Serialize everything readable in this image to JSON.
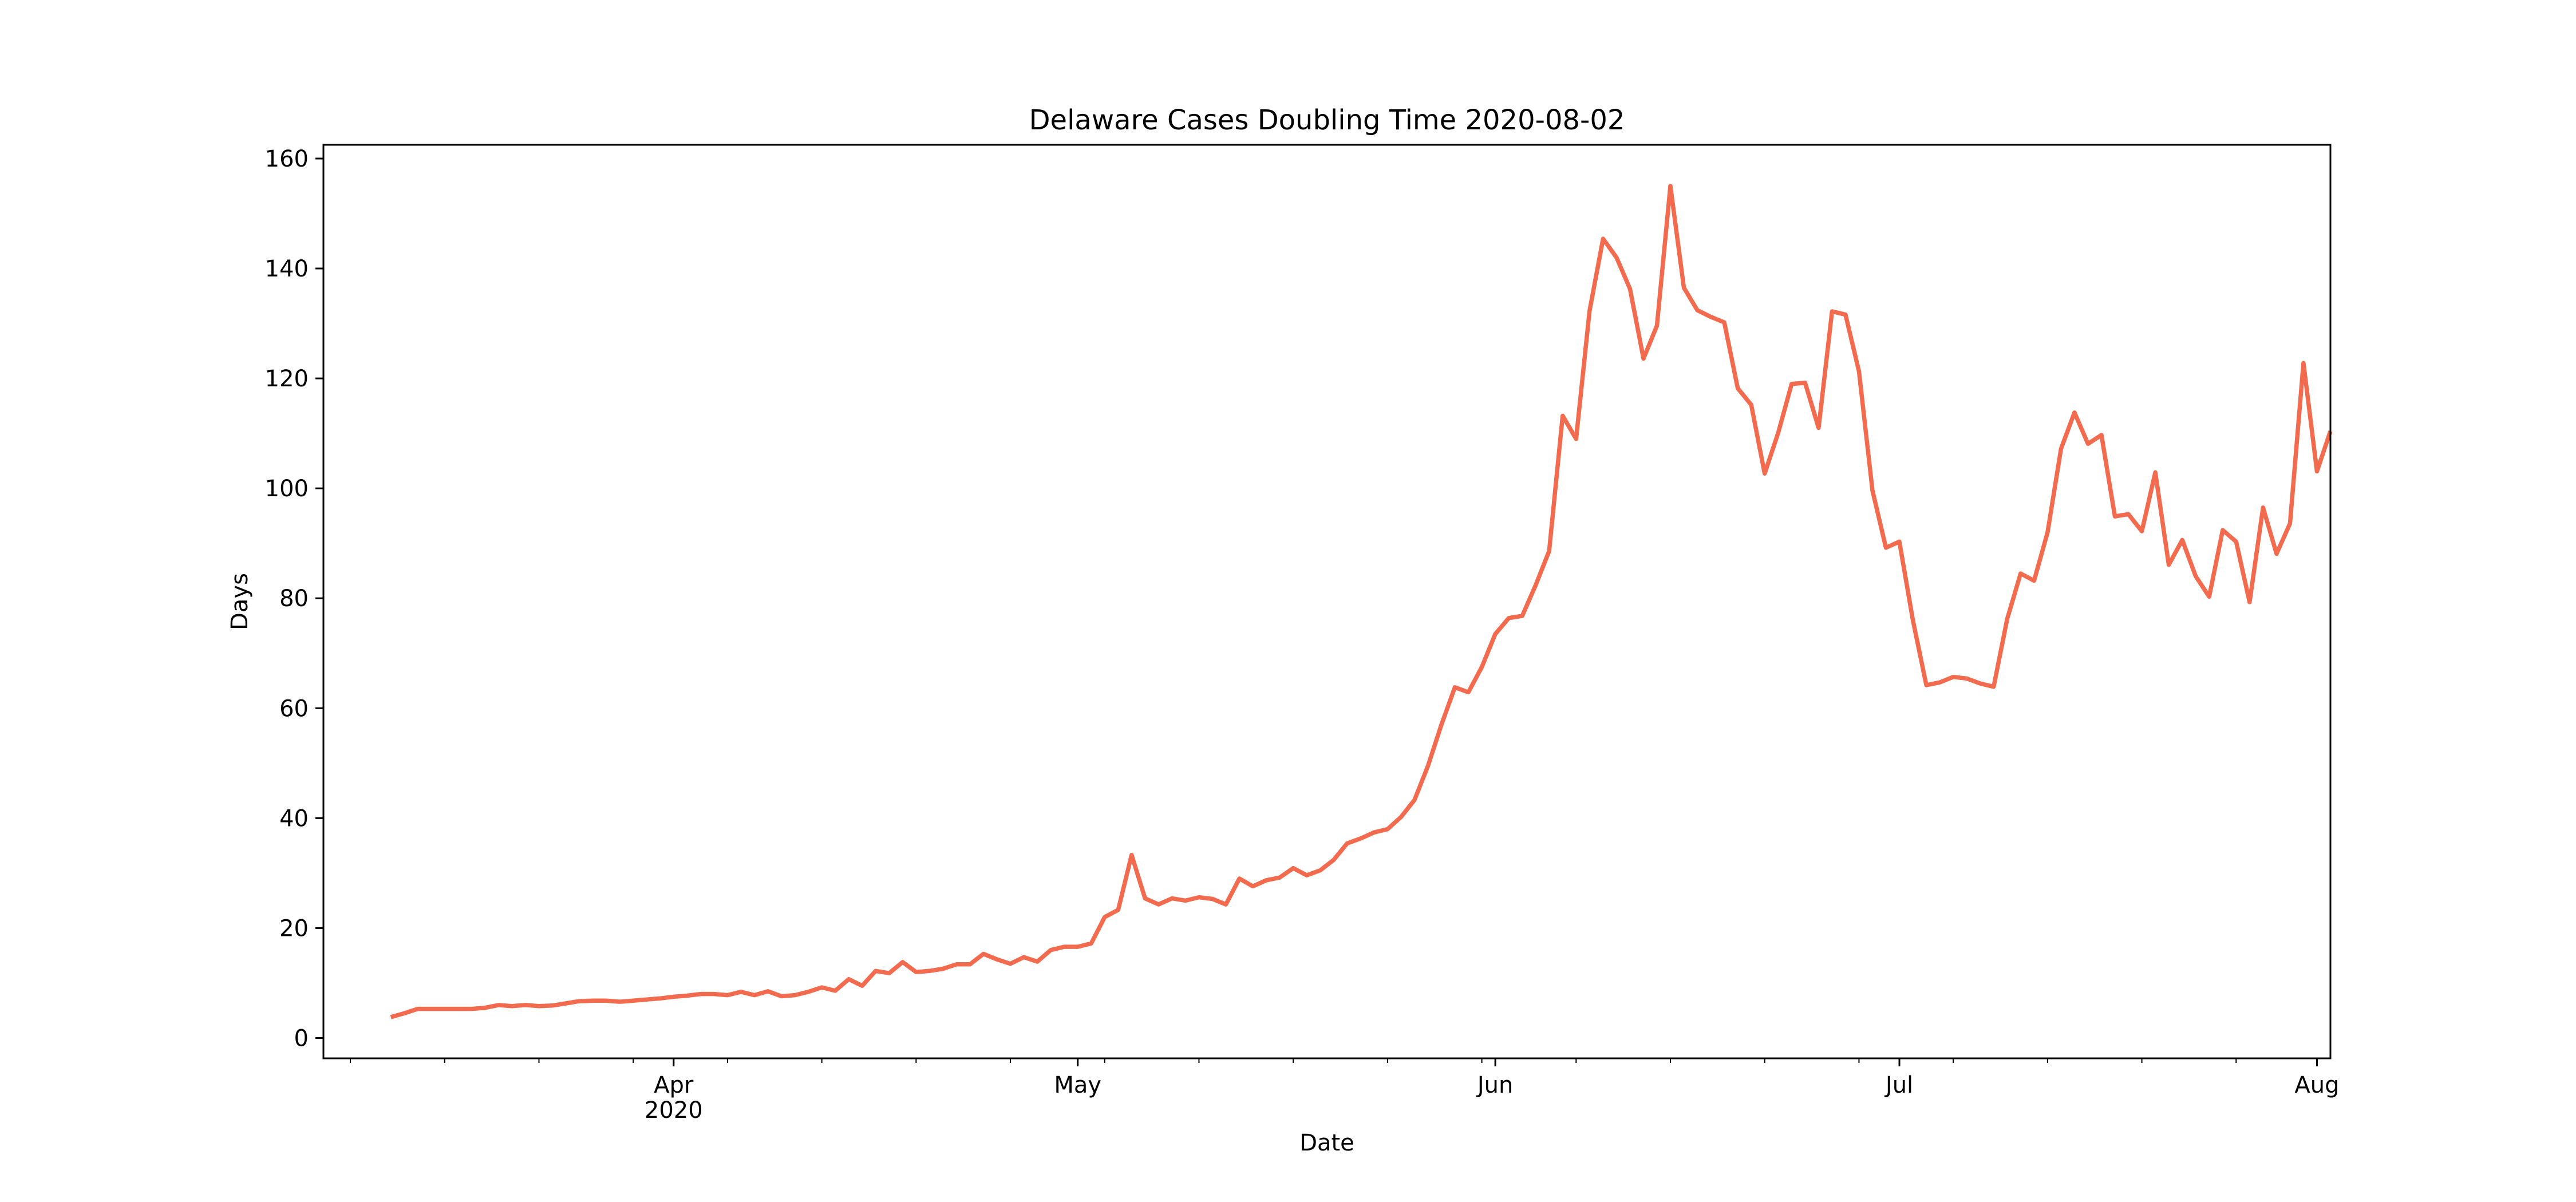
{
  "chart_data": {
    "type": "line",
    "title": "Delaware Cases Doubling Time 2020-08-02",
    "xlabel": "Date",
    "ylabel": "Days",
    "xlim": [
      "2020-03-06",
      "2020-08-02"
    ],
    "ylim": [
      -3.7,
      162.5
    ],
    "grid": false,
    "legend": "none",
    "line_color": "#f26b4f",
    "y_ticks": [
      0,
      20,
      40,
      60,
      80,
      100,
      120,
      140,
      160
    ],
    "x_major_ticks": [
      {
        "date": "2020-04-01",
        "label": "Apr",
        "sublabel": "2020"
      },
      {
        "date": "2020-05-01",
        "label": "May",
        "sublabel": ""
      },
      {
        "date": "2020-06-01",
        "label": "Jun",
        "sublabel": ""
      },
      {
        "date": "2020-07-01",
        "label": "Jul",
        "sublabel": ""
      },
      {
        "date": "2020-08-01",
        "label": "Aug",
        "sublabel": ""
      }
    ],
    "x_minor_tick_dates": [
      "2020-03-08",
      "2020-03-15",
      "2020-03-22",
      "2020-03-29",
      "2020-04-05",
      "2020-04-12",
      "2020-04-19",
      "2020-04-26",
      "2020-05-03",
      "2020-05-10",
      "2020-05-17",
      "2020-05-24",
      "2020-05-31",
      "2020-06-07",
      "2020-06-14",
      "2020-06-21",
      "2020-06-28",
      "2020-07-05",
      "2020-07-12",
      "2020-07-19",
      "2020-07-26"
    ],
    "series": [
      {
        "start_date": "2020-03-11",
        "values": [
          3.8,
          4.5,
          5.3,
          5.3,
          5.3,
          5.3,
          5.3,
          5.5,
          6.0,
          5.8,
          6.0,
          5.8,
          5.9,
          6.3,
          6.7,
          6.8,
          6.8,
          6.6,
          6.8,
          7.0,
          7.2,
          7.5,
          7.7,
          8.0,
          8.0,
          7.8,
          8.4,
          7.8,
          8.5,
          7.6,
          7.8,
          8.4,
          9.2,
          8.6,
          10.7,
          9.5,
          12.2,
          11.8,
          13.8,
          12.0,
          12.2,
          12.6,
          13.4,
          13.4,
          15.3,
          14.3,
          13.5,
          14.7,
          13.9,
          16.0,
          16.6,
          16.6,
          17.2,
          22.0,
          23.3,
          33.3,
          25.4,
          24.3,
          25.4,
          25.0,
          25.6,
          25.3,
          24.3,
          29.0,
          27.6,
          28.7,
          29.2,
          30.9,
          29.6,
          30.5,
          32.4,
          35.4,
          36.3,
          37.4,
          38.0,
          40.2,
          43.3,
          49.5,
          57.0,
          63.8,
          62.9,
          67.5,
          73.5,
          76.4,
          76.8,
          82.4,
          88.6,
          113.2,
          109.0,
          132.3,
          145.4,
          142.0,
          136.3,
          123.6,
          129.6,
          155.0,
          136.5,
          132.4,
          131.2,
          130.2,
          118.2,
          115.2,
          102.7,
          110.1,
          119.0,
          119.2,
          111.0,
          132.2,
          131.6,
          121.3,
          99.6,
          89.2,
          90.3,
          76.0,
          64.2,
          64.7,
          65.7,
          65.4,
          64.5,
          63.9,
          76.2,
          84.5,
          83.2,
          92.0,
          107.2,
          113.8,
          108.1,
          109.7,
          94.9,
          95.3,
          92.2,
          102.9,
          86.1,
          90.6,
          84.0,
          80.3,
          92.4,
          90.3,
          79.3,
          96.5,
          88.1,
          93.6,
          122.8,
          103.1,
          110.4
        ]
      }
    ]
  }
}
